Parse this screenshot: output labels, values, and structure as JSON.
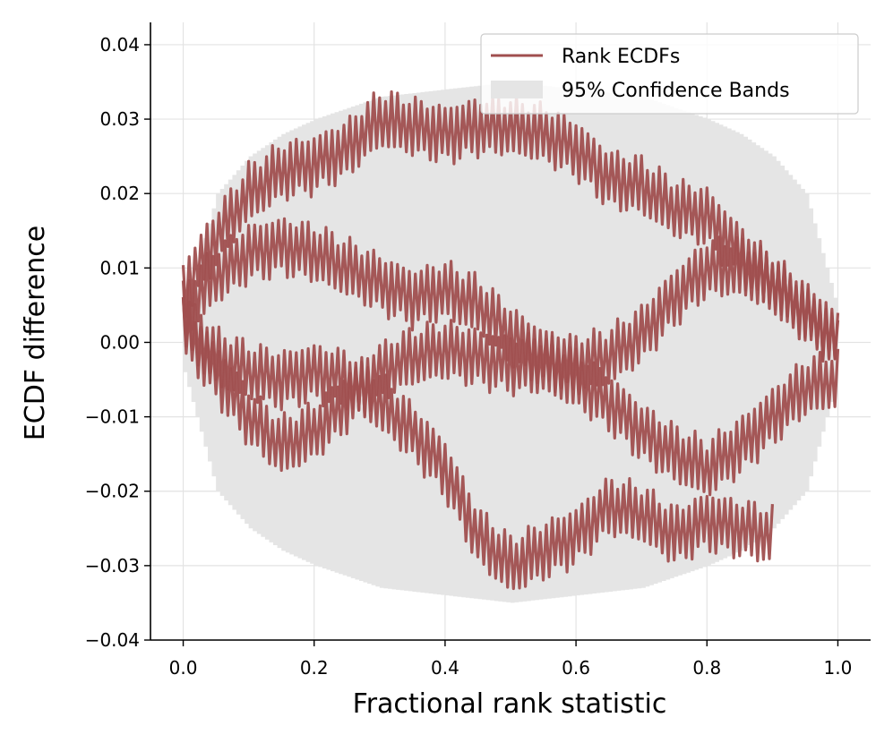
{
  "chart_data": {
    "type": "line",
    "xlabel": "Fractional rank statistic",
    "ylabel": "ECDF difference",
    "xlim": [
      -0.05,
      1.05
    ],
    "ylim": [
      -0.04,
      0.043
    ],
    "xticks": [
      0.0,
      0.2,
      0.4,
      0.6,
      0.8,
      1.0
    ],
    "xtick_labels": [
      "0.0",
      "0.2",
      "0.4",
      "0.6",
      "0.8",
      "1.0"
    ],
    "yticks": [
      -0.04,
      -0.03,
      -0.02,
      -0.01,
      0.0,
      0.01,
      0.02,
      0.03,
      0.04
    ],
    "ytick_labels": [
      "−0.04",
      "−0.03",
      "−0.02",
      "−0.01",
      "0.00",
      "0.01",
      "0.02",
      "0.03",
      "0.04"
    ],
    "grid": true,
    "legend_position": "top-right",
    "legend": {
      "line_label": "Rank ECDFs",
      "band_label": "95% Confidence Bands"
    },
    "colors": {
      "line": "#a04f4f",
      "band": "#e5e5e5",
      "grid": "#e3e3e3"
    },
    "confidence_band": {
      "x": [
        0.0,
        0.05,
        0.1,
        0.15,
        0.2,
        0.3,
        0.4,
        0.5,
        0.6,
        0.7,
        0.8,
        0.85,
        0.9,
        0.95,
        1.0
      ],
      "upper": [
        0.004,
        0.02,
        0.025,
        0.028,
        0.03,
        0.033,
        0.034,
        0.035,
        0.034,
        0.033,
        0.03,
        0.028,
        0.025,
        0.02,
        0.004
      ],
      "lower": [
        -0.004,
        -0.02,
        -0.025,
        -0.028,
        -0.03,
        -0.033,
        -0.034,
        -0.035,
        -0.034,
        -0.033,
        -0.03,
        -0.028,
        -0.025,
        -0.02,
        -0.004
      ]
    },
    "series": [
      {
        "x": [
          0.0,
          0.05,
          0.1,
          0.15,
          0.2,
          0.25,
          0.3,
          0.35,
          0.4,
          0.45,
          0.5,
          0.55,
          0.6,
          0.65,
          0.7,
          0.75,
          0.8,
          0.85,
          0.9,
          0.95,
          1.0
        ],
        "center": [
          0.007,
          0.014,
          0.02,
          0.023,
          0.024,
          0.026,
          0.03,
          0.029,
          0.028,
          0.029,
          0.029,
          0.028,
          0.026,
          0.022,
          0.021,
          0.018,
          0.017,
          0.012,
          0.008,
          0.004,
          0.0
        ],
        "amplitude": 0.0045
      },
      {
        "x": [
          0.0,
          0.05,
          0.1,
          0.15,
          0.2,
          0.25,
          0.3,
          0.35,
          0.4,
          0.45,
          0.5,
          0.55,
          0.6,
          0.65,
          0.7,
          0.75,
          0.8,
          0.85,
          0.9,
          0.95,
          1.0
        ],
        "center": [
          0.004,
          0.009,
          0.012,
          0.013,
          0.012,
          0.01,
          0.008,
          0.006,
          0.007,
          0.005,
          0.001,
          -0.002,
          -0.003,
          -0.002,
          0.001,
          0.006,
          0.01,
          0.01,
          0.008,
          0.004,
          0.0
        ],
        "amplitude": 0.0045
      },
      {
        "x": [
          0.0,
          0.05,
          0.1,
          0.15,
          0.2,
          0.25,
          0.3,
          0.35,
          0.4,
          0.45,
          0.5,
          0.55,
          0.6,
          0.65,
          0.7,
          0.75,
          0.8,
          0.85,
          0.9,
          0.95,
          1.0
        ],
        "center": [
          0.002,
          -0.004,
          -0.01,
          -0.014,
          -0.012,
          -0.008,
          -0.004,
          -0.002,
          -0.001,
          -0.002,
          -0.003,
          -0.003,
          -0.005,
          -0.008,
          -0.012,
          -0.015,
          -0.017,
          -0.014,
          -0.01,
          -0.006,
          -0.005
        ],
        "amplitude": 0.0045
      },
      {
        "x": [
          0.0,
          0.05,
          0.1,
          0.15,
          0.2,
          0.25,
          0.3,
          0.35,
          0.4,
          0.45,
          0.5,
          0.55,
          0.6,
          0.65,
          0.7,
          0.75,
          0.8,
          0.85,
          0.9
        ],
        "center": [
          0.003,
          -0.002,
          -0.004,
          -0.005,
          -0.004,
          -0.005,
          -0.008,
          -0.012,
          -0.017,
          -0.026,
          -0.03,
          -0.028,
          -0.026,
          -0.022,
          -0.023,
          -0.026,
          -0.024,
          -0.025,
          -0.026
        ],
        "amplitude": 0.0045
      }
    ]
  }
}
